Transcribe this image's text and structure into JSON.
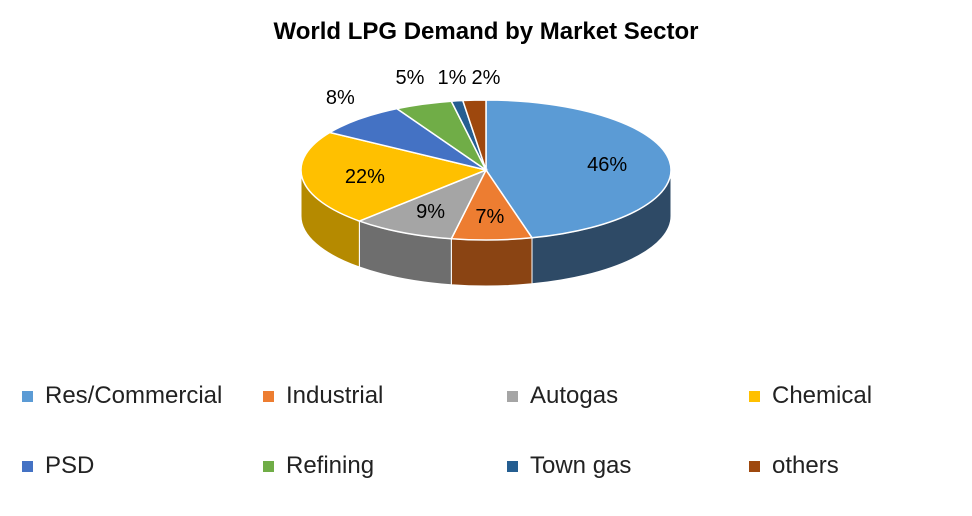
{
  "chart_data": {
    "type": "pie",
    "title": "World LPG Demand by Market Sector",
    "legend_position": "bottom",
    "slices": [
      {
        "name": "Res/Commercial",
        "value": 46,
        "label": "46%",
        "color": "#5B9BD5",
        "dark": "#2E4A66"
      },
      {
        "name": "Industrial",
        "value": 7,
        "label": "7%",
        "color": "#ED7D31",
        "dark": "#8A4413"
      },
      {
        "name": "Autogas",
        "value": 9,
        "label": "9%",
        "color": "#A5A5A5",
        "dark": "#6E6E6E"
      },
      {
        "name": "Chemical",
        "value": 22,
        "label": "22%",
        "color": "#FFC000",
        "dark": "#B58A00"
      },
      {
        "name": "PSD",
        "value": 8,
        "label": "8%",
        "color": "#4472C4",
        "dark": "#2A4A80"
      },
      {
        "name": "Refining",
        "value": 5,
        "label": "5%",
        "color": "#70AD47",
        "dark": "#47702C"
      },
      {
        "name": "Town gas",
        "value": 1,
        "label": "1%",
        "color": "#255E91",
        "dark": "#173D5F"
      },
      {
        "name": "others",
        "value": 2,
        "label": "2%",
        "color": "#9E480E",
        "dark": "#622C08"
      }
    ]
  }
}
